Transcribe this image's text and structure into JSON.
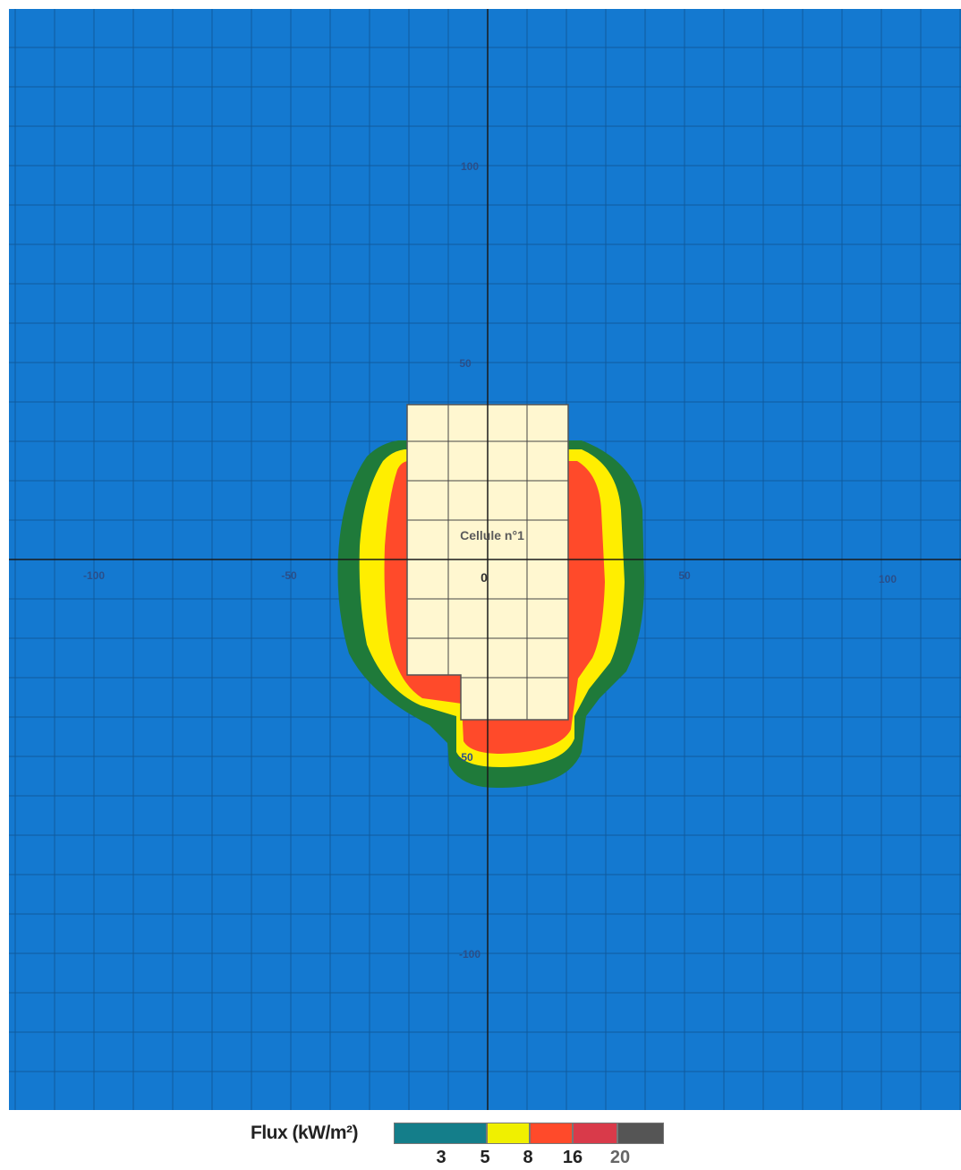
{
  "map": {
    "background_color": "#1479d0",
    "grid_color": "#0f5b9e",
    "axis_color": "#1a1a1a",
    "x_axis_ticks": [
      "-100",
      "-50",
      "50",
      "100"
    ],
    "y_axis_ticks": [
      "100",
      "50",
      "-50",
      "-100"
    ],
    "origin_label": "0",
    "cell_label": "Cellule n°1",
    "zone_colors": {
      "outer": "#1f7a3a",
      "mid": "#ffee00",
      "inner": "#ff4a2a",
      "cell": "#fff7d0"
    }
  },
  "legend": {
    "title": "Flux (kW/m²)",
    "colors": [
      "#147e8a",
      "#f0f000",
      "#ff4a2a",
      "#d93a4a",
      "#555555"
    ],
    "values": [
      "3",
      "5",
      "8",
      "16",
      "20"
    ]
  }
}
